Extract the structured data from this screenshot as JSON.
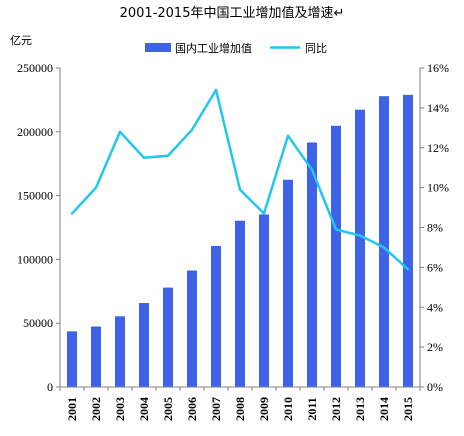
{
  "chart_data": {
    "type": "bar+line",
    "title": "2001-2015年中国工业增加值及增速↵",
    "y_left_unit": "亿元",
    "categories": [
      "2001",
      "2002",
      "2003",
      "2004",
      "2005",
      "2006",
      "2007",
      "2008",
      "2009",
      "2010",
      "2011",
      "2012",
      "2013",
      "2014",
      "2015"
    ],
    "series": [
      {
        "name": "国内工业增加值",
        "type": "bar",
        "axis": "left",
        "color": "#3d63e8",
        "values": [
          43600,
          47400,
          55400,
          65800,
          77900,
          91300,
          110500,
          130300,
          135200,
          162400,
          191600,
          204700,
          217300,
          227900,
          228900
        ]
      },
      {
        "name": "同比",
        "type": "line",
        "axis": "right",
        "color": "#22c6ef",
        "values": [
          8.7,
          10.0,
          12.8,
          11.5,
          11.6,
          12.9,
          14.9,
          9.9,
          8.7,
          12.6,
          10.9,
          7.9,
          7.6,
          7.0,
          5.9
        ]
      }
    ],
    "y_left": {
      "min": 0,
      "max": 250000,
      "ticks": [
        "0",
        "50000",
        "100000",
        "150000",
        "200000",
        "250000"
      ]
    },
    "y_right": {
      "min": 0,
      "max": 16,
      "ticks": [
        "0%",
        "2%",
        "4%",
        "6%",
        "8%",
        "10%",
        "12%",
        "14%",
        "16%"
      ]
    },
    "legend_position": "top-center",
    "grid": false
  }
}
